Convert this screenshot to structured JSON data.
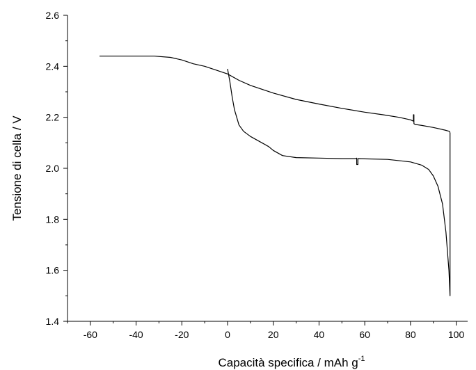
{
  "chart_data": {
    "type": "line",
    "title": "",
    "xlabel": "Capacità specifica / mAh g",
    "xlabel_superscript": "-1",
    "ylabel": "Tensione di cella / V",
    "xlim": [
      -70,
      105
    ],
    "ylim": [
      1.4,
      2.6
    ],
    "xticks": [
      -60,
      -40,
      -20,
      0,
      20,
      40,
      60,
      80,
      100
    ],
    "yticks": [
      1.4,
      1.6,
      1.8,
      2.0,
      2.2,
      2.4,
      2.6
    ],
    "xtick_labels": [
      "-60",
      "-40",
      "-20",
      "0",
      "20",
      "40",
      "60",
      "80",
      "100"
    ],
    "ytick_labels": [
      "1.4",
      "1.6",
      "1.8",
      "2.0",
      "2.2",
      "2.4",
      "2.6"
    ],
    "grid": false,
    "legend": "none",
    "series": [
      {
        "color": "#000000",
        "x": [
          -56,
          -50,
          -40,
          -32,
          -25,
          -20,
          -15,
          -10,
          -5,
          0,
          5,
          10,
          20,
          30,
          40,
          50,
          60,
          68,
          75,
          80,
          81.3,
          81.3,
          81.5,
          81.5,
          82,
          85,
          90,
          95,
          97,
          97.3
        ],
        "y": [
          2.44,
          2.44,
          2.44,
          2.44,
          2.435,
          2.425,
          2.41,
          2.4,
          2.385,
          2.37,
          2.345,
          2.325,
          2.295,
          2.27,
          2.252,
          2.235,
          2.22,
          2.21,
          2.2,
          2.19,
          2.185,
          2.21,
          2.21,
          2.175,
          2.172,
          2.168,
          2.16,
          2.15,
          2.145,
          2.14
        ]
      },
      {
        "color": "#000000",
        "x": [
          97.3,
          97.3,
          96.8,
          95.5,
          94,
          92,
          90,
          88,
          85,
          80,
          70,
          60,
          57,
          57,
          56.5,
          56.5,
          56,
          50,
          40,
          30,
          24,
          20,
          18,
          15,
          10,
          7,
          5,
          3,
          2,
          1,
          0
        ],
        "y": [
          2.14,
          1.5,
          1.6,
          1.75,
          1.86,
          1.93,
          1.97,
          1.995,
          2.012,
          2.025,
          2.035,
          2.037,
          2.038,
          2.015,
          2.015,
          2.04,
          2.038,
          2.038,
          2.04,
          2.042,
          2.05,
          2.07,
          2.085,
          2.1,
          2.125,
          2.145,
          2.17,
          2.23,
          2.28,
          2.34,
          2.39
        ]
      }
    ]
  }
}
